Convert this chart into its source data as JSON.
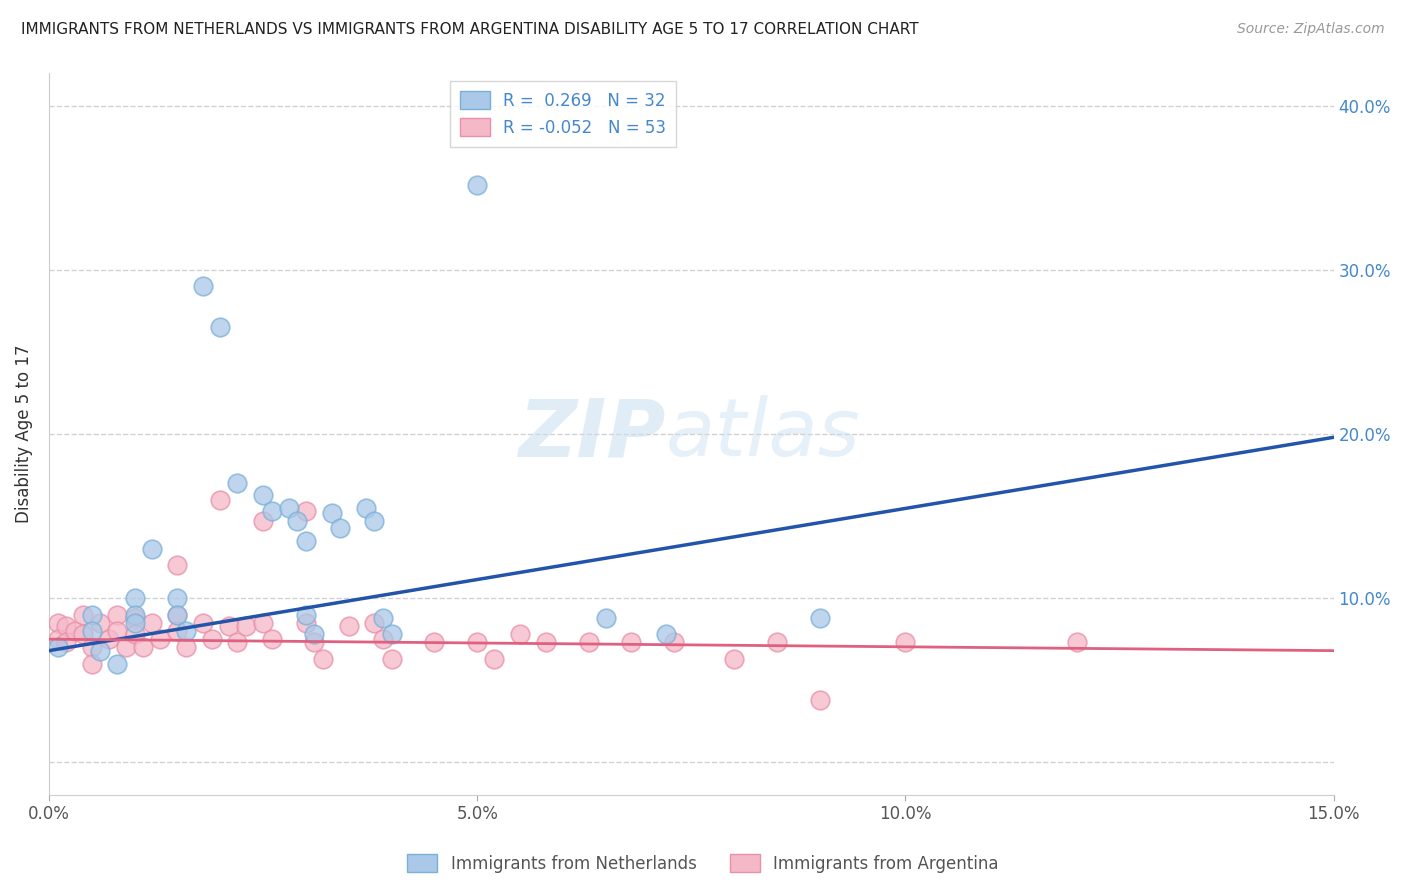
{
  "title": "IMMIGRANTS FROM NETHERLANDS VS IMMIGRANTS FROM ARGENTINA DISABILITY AGE 5 TO 17 CORRELATION CHART",
  "source": "Source: ZipAtlas.com",
  "ylabel": "Disability Age 5 to 17",
  "xlim": [
    0.0,
    0.15
  ],
  "ylim": [
    -0.02,
    0.42
  ],
  "xticks": [
    0.0,
    0.05,
    0.1,
    0.15
  ],
  "xtick_labels": [
    "0.0%",
    "5.0%",
    "10.0%",
    "15.0%"
  ],
  "yticks": [
    0.0,
    0.1,
    0.2,
    0.3,
    0.4
  ],
  "ytick_labels_right": [
    "",
    "10.0%",
    "20.0%",
    "30.0%",
    "40.0%"
  ],
  "netherlands_color": "#aac8e8",
  "netherlands_edge_color": "#7ab0d8",
  "argentina_color": "#f5b8c8",
  "argentina_edge_color": "#e890a8",
  "netherlands_line_color": "#2255aa",
  "argentina_line_color": "#e06080",
  "grid_color": "#cccccc",
  "background_color": "#ffffff",
  "netherlands_N": 32,
  "argentina_N": 53,
  "nl_line_x0": 0.0,
  "nl_line_y0": 0.068,
  "nl_line_x1": 0.15,
  "nl_line_y1": 0.198,
  "ar_line_x0": 0.0,
  "ar_line_y0": 0.075,
  "ar_line_x1": 0.15,
  "ar_line_y1": 0.068,
  "netherlands_data": [
    [
      0.001,
      0.07
    ],
    [
      0.005,
      0.09
    ],
    [
      0.005,
      0.08
    ],
    [
      0.006,
      0.068
    ],
    [
      0.008,
      0.06
    ],
    [
      0.01,
      0.1
    ],
    [
      0.01,
      0.09
    ],
    [
      0.01,
      0.085
    ],
    [
      0.012,
      0.13
    ],
    [
      0.015,
      0.1
    ],
    [
      0.015,
      0.09
    ],
    [
      0.016,
      0.08
    ],
    [
      0.018,
      0.29
    ],
    [
      0.02,
      0.265
    ],
    [
      0.022,
      0.17
    ],
    [
      0.025,
      0.163
    ],
    [
      0.026,
      0.153
    ],
    [
      0.028,
      0.155
    ],
    [
      0.029,
      0.147
    ],
    [
      0.03,
      0.135
    ],
    [
      0.03,
      0.09
    ],
    [
      0.031,
      0.078
    ],
    [
      0.033,
      0.152
    ],
    [
      0.034,
      0.143
    ],
    [
      0.037,
      0.155
    ],
    [
      0.038,
      0.147
    ],
    [
      0.039,
      0.088
    ],
    [
      0.04,
      0.078
    ],
    [
      0.05,
      0.352
    ],
    [
      0.065,
      0.088
    ],
    [
      0.072,
      0.078
    ],
    [
      0.09,
      0.088
    ]
  ],
  "argentina_data": [
    [
      0.001,
      0.085
    ],
    [
      0.001,
      0.075
    ],
    [
      0.002,
      0.083
    ],
    [
      0.002,
      0.073
    ],
    [
      0.003,
      0.08
    ],
    [
      0.004,
      0.09
    ],
    [
      0.004,
      0.078
    ],
    [
      0.005,
      0.07
    ],
    [
      0.005,
      0.06
    ],
    [
      0.006,
      0.085
    ],
    [
      0.007,
      0.075
    ],
    [
      0.008,
      0.09
    ],
    [
      0.008,
      0.08
    ],
    [
      0.009,
      0.07
    ],
    [
      0.01,
      0.088
    ],
    [
      0.01,
      0.078
    ],
    [
      0.011,
      0.07
    ],
    [
      0.012,
      0.085
    ],
    [
      0.013,
      0.075
    ],
    [
      0.015,
      0.12
    ],
    [
      0.015,
      0.09
    ],
    [
      0.015,
      0.08
    ],
    [
      0.016,
      0.07
    ],
    [
      0.018,
      0.085
    ],
    [
      0.019,
      0.075
    ],
    [
      0.02,
      0.16
    ],
    [
      0.021,
      0.083
    ],
    [
      0.022,
      0.073
    ],
    [
      0.023,
      0.083
    ],
    [
      0.025,
      0.147
    ],
    [
      0.025,
      0.085
    ],
    [
      0.026,
      0.075
    ],
    [
      0.03,
      0.153
    ],
    [
      0.03,
      0.085
    ],
    [
      0.031,
      0.073
    ],
    [
      0.032,
      0.063
    ],
    [
      0.035,
      0.083
    ],
    [
      0.038,
      0.085
    ],
    [
      0.039,
      0.075
    ],
    [
      0.04,
      0.063
    ],
    [
      0.045,
      0.073
    ],
    [
      0.05,
      0.073
    ],
    [
      0.052,
      0.063
    ],
    [
      0.055,
      0.078
    ],
    [
      0.058,
      0.073
    ],
    [
      0.063,
      0.073
    ],
    [
      0.068,
      0.073
    ],
    [
      0.073,
      0.073
    ],
    [
      0.08,
      0.063
    ],
    [
      0.085,
      0.073
    ],
    [
      0.09,
      0.038
    ],
    [
      0.1,
      0.073
    ],
    [
      0.12,
      0.073
    ]
  ]
}
